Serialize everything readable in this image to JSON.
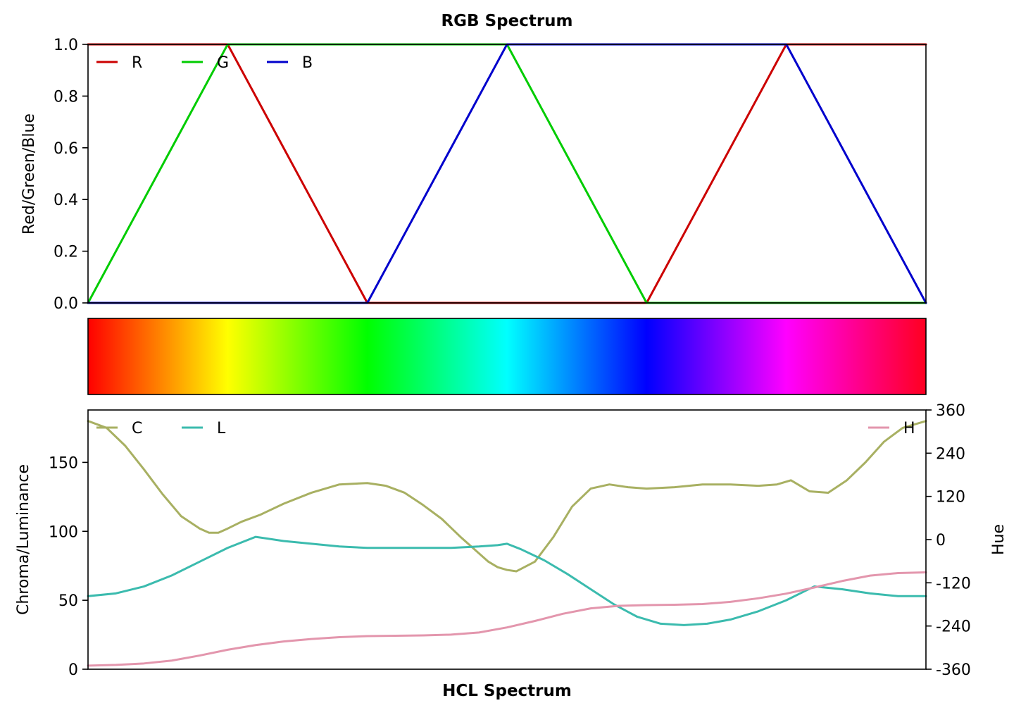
{
  "chart_data": [
    {
      "type": "line",
      "title": "RGB Spectrum",
      "xlabel": "",
      "ylabel": "Red/Green/Blue",
      "xlim": [
        0,
        360
      ],
      "ylim": [
        0,
        1
      ],
      "yticks": [
        "0.0",
        "0.2",
        "0.4",
        "0.6",
        "0.8",
        "1.0"
      ],
      "legend": "top-left",
      "series": [
        {
          "name": "R",
          "color": "#cc0000",
          "x": [
            0,
            60,
            120,
            180,
            240,
            300,
            360
          ],
          "y": [
            1,
            1,
            0,
            0,
            0,
            1,
            1
          ]
        },
        {
          "name": "G",
          "color": "#00cc00",
          "x": [
            0,
            60,
            120,
            180,
            240,
            300,
            360
          ],
          "y": [
            0,
            1,
            1,
            1,
            0,
            0,
            0
          ]
        },
        {
          "name": "B",
          "color": "#0000cc",
          "x": [
            0,
            60,
            120,
            180,
            240,
            300,
            360
          ],
          "y": [
            0,
            0,
            0,
            1,
            1,
            1,
            0
          ]
        }
      ]
    },
    {
      "type": "heatmap",
      "title": "",
      "xlim": [
        0,
        360
      ],
      "stops": [
        {
          "x": 0,
          "color": "#ff0000"
        },
        {
          "x": 60,
          "color": "#ffff00"
        },
        {
          "x": 120,
          "color": "#00ff00"
        },
        {
          "x": 180,
          "color": "#00ffff"
        },
        {
          "x": 240,
          "color": "#0000ff"
        },
        {
          "x": 300,
          "color": "#ff00ff"
        },
        {
          "x": 360,
          "color": "#ff0020"
        }
      ]
    },
    {
      "type": "line",
      "title": "",
      "xlabel": "HCL Spectrum",
      "ylabel": "Chroma/Luminance",
      "y2label": "Hue",
      "xlim": [
        0,
        360
      ],
      "ylim": [
        0,
        188
      ],
      "y2lim": [
        -360,
        360
      ],
      "yticks": [
        "0",
        "50",
        "100",
        "150"
      ],
      "y2ticks": [
        "-360",
        "-240",
        "-120",
        "0",
        "120",
        "240",
        "360"
      ],
      "legend": "top-left",
      "legend2": "top-right",
      "series": [
        {
          "name": "C",
          "color": "#a8b062",
          "axis": "left",
          "x": [
            0,
            8,
            16,
            24,
            32,
            40,
            48,
            52,
            56,
            60,
            66,
            74,
            84,
            96,
            108,
            120,
            128,
            136,
            144,
            152,
            160,
            168,
            172,
            176,
            180,
            184,
            192,
            200,
            208,
            216,
            224,
            232,
            240,
            252,
            264,
            276,
            288,
            296,
            302,
            310,
            318,
            326,
            334,
            342,
            350,
            360
          ],
          "y": [
            180,
            175,
            162,
            145,
            127,
            111,
            102,
            99,
            99,
            102,
            107,
            112,
            120,
            128,
            134,
            135,
            133,
            128,
            119,
            109,
            96,
            84,
            78,
            74,
            72,
            71,
            78,
            96,
            118,
            131,
            134,
            132,
            131,
            132,
            134,
            134,
            133,
            134,
            137,
            129,
            128,
            137,
            150,
            165,
            175,
            180
          ]
        },
        {
          "name": "L",
          "color": "#3bbbae",
          "axis": "left",
          "x": [
            0,
            12,
            24,
            36,
            48,
            60,
            72,
            84,
            96,
            108,
            120,
            132,
            144,
            156,
            168,
            176,
            180,
            186,
            196,
            206,
            216,
            226,
            236,
            246,
            256,
            266,
            276,
            288,
            300,
            312,
            324,
            336,
            348,
            360
          ],
          "y": [
            53,
            55,
            60,
            68,
            78,
            88,
            96,
            93,
            91,
            89,
            88,
            88,
            88,
            88,
            89,
            90,
            91,
            87,
            79,
            69,
            58,
            47,
            38,
            33,
            32,
            33,
            36,
            42,
            50,
            60,
            58,
            55,
            53,
            53
          ]
        },
        {
          "name": "H",
          "color": "#e396ad",
          "axis": "right",
          "x": [
            0,
            12,
            24,
            36,
            48,
            60,
            72,
            84,
            96,
            108,
            120,
            132,
            144,
            156,
            168,
            180,
            192,
            204,
            216,
            228,
            240,
            252,
            264,
            276,
            288,
            300,
            312,
            324,
            336,
            348,
            360
          ],
          "y": [
            -350,
            -348,
            -344,
            -336,
            -322,
            -306,
            -293,
            -283,
            -276,
            -271,
            -268,
            -267,
            -266,
            -264,
            -258,
            -244,
            -226,
            -206,
            -191,
            -184,
            -182,
            -181,
            -179,
            -173,
            -163,
            -150,
            -133,
            -115,
            -100,
            -93,
            -91
          ]
        }
      ]
    }
  ]
}
